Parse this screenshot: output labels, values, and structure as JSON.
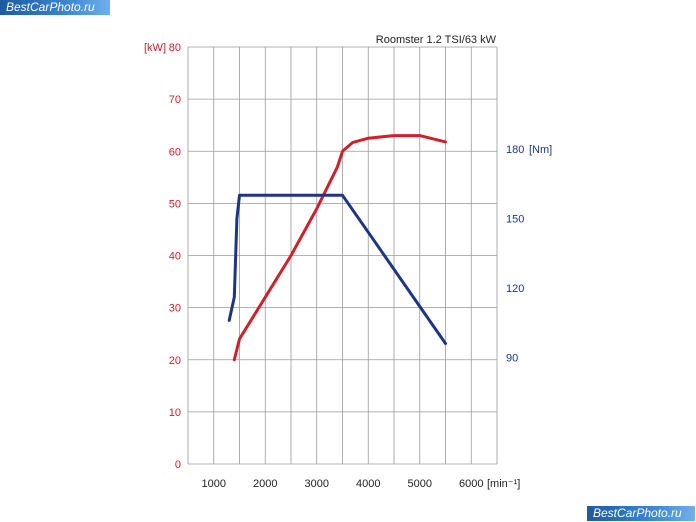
{
  "watermark": {
    "top": "BestCarPhoto.ru",
    "bottom": "BestCarPhoto.ru"
  },
  "colors": {
    "power": "#d0202c",
    "torque": "#1f3584",
    "grid": "#9a9a9a",
    "text": "#222222"
  },
  "chart_data": {
    "type": "line",
    "title": "Roomster 1.2 TSI/63 kW",
    "x_unit": "[min⁻¹]",
    "x_ticks": [
      1000,
      2000,
      3000,
      4000,
      5000,
      6000
    ],
    "xlim": [
      500,
      6500
    ],
    "y_left": {
      "unit": "[kW]",
      "ticks": [
        0,
        10,
        20,
        30,
        40,
        50,
        60,
        70,
        80
      ],
      "lim": [
        0,
        80
      ]
    },
    "y_right": {
      "unit": "[Nm]",
      "ticks": [
        90,
        120,
        150,
        180
      ],
      "lim": [
        44,
        224
      ]
    },
    "grid": true,
    "series": [
      {
        "axis": "left",
        "color": "#d0202c",
        "x": [
          1400,
          1500,
          2000,
          2500,
          3000,
          3400,
          3500,
          3700,
          4000,
          4500,
          5000,
          5500
        ],
        "y": [
          20,
          24,
          32,
          40,
          49,
          57,
          60,
          61.7,
          62.5,
          63,
          63,
          61.8
        ]
      },
      {
        "axis": "right",
        "color": "#1f3584",
        "x": [
          1300,
          1400,
          1450,
          1500,
          2000,
          3000,
          3500,
          4000,
          5000,
          5500
        ],
        "y": [
          106,
          116,
          150,
          160,
          160,
          160,
          160,
          144,
          112,
          96
        ]
      }
    ]
  }
}
